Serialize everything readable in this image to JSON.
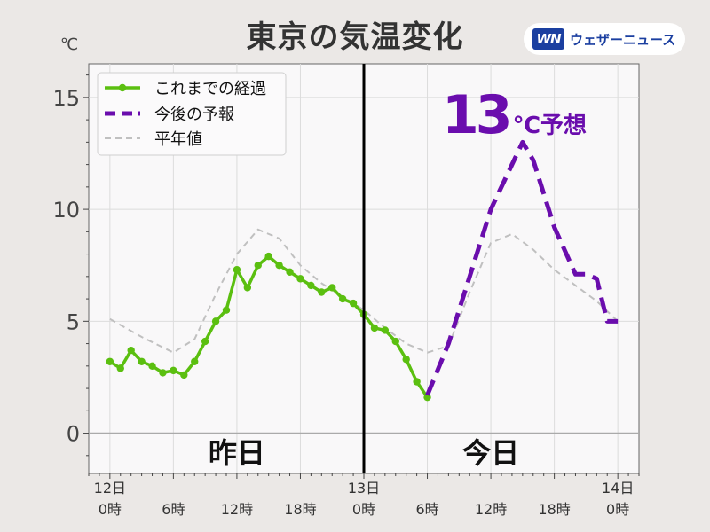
{
  "header": {
    "title": "東京の気温変化",
    "brand_logo": "WN",
    "brand_name": "ウェザーニュース"
  },
  "chart_data": {
    "type": "line",
    "ylabel": "℃",
    "ylim": [
      -1.8,
      16.5
    ],
    "yticks": [
      0,
      5,
      10,
      15
    ],
    "xlim": [
      -2,
      50
    ],
    "x_unit": "hours from 12日0時",
    "xtick_labels": [
      {
        "x": 0,
        "date": "12日",
        "time": "0時"
      },
      {
        "x": 6,
        "date": "",
        "time": "6時"
      },
      {
        "x": 12,
        "date": "",
        "time": "12時"
      },
      {
        "x": 18,
        "date": "",
        "time": "18時"
      },
      {
        "x": 24,
        "date": "13日",
        "time": "0時"
      },
      {
        "x": 30,
        "date": "",
        "time": "6時"
      },
      {
        "x": 36,
        "date": "",
        "time": "12時"
      },
      {
        "x": 42,
        "date": "",
        "time": "18時"
      },
      {
        "x": 48,
        "date": "14日",
        "time": "0時"
      }
    ],
    "divider_x": 24,
    "day_labels": {
      "yesterday": "昨日",
      "today": "今日"
    },
    "annotation": {
      "value": "13",
      "suffix": "℃予想",
      "color": "#6a0dad"
    },
    "legend": {
      "position": "top-left",
      "items": [
        {
          "label": "これまでの経過",
          "series": "observed"
        },
        {
          "label": "今後の予報",
          "series": "forecast"
        },
        {
          "label": "平年値",
          "series": "normal"
        }
      ]
    },
    "series": [
      {
        "id": "observed",
        "name": "これまでの経過",
        "color": "#5bbf10",
        "x": [
          0,
          1,
          2,
          3,
          4,
          5,
          6,
          7,
          8,
          9,
          10,
          11,
          12,
          13,
          14,
          15,
          16,
          17,
          18,
          19,
          20,
          21,
          22,
          23,
          24,
          25,
          26,
          27,
          28,
          29,
          30
        ],
        "y": [
          3.2,
          2.9,
          3.7,
          3.2,
          3.0,
          2.7,
          2.8,
          2.6,
          3.2,
          4.1,
          5.0,
          5.5,
          7.3,
          6.5,
          7.5,
          7.9,
          7.5,
          7.2,
          6.9,
          6.6,
          6.3,
          6.5,
          6.0,
          5.8,
          5.3,
          4.7,
          4.6,
          4.1,
          3.3,
          2.3,
          1.6
        ]
      },
      {
        "id": "forecast",
        "name": "今後の予報",
        "color": "#6a0dad",
        "x": [
          30,
          32,
          34,
          36,
          38,
          39,
          40,
          42,
          44,
          45,
          46,
          47,
          48
        ],
        "y": [
          1.7,
          4.0,
          7.0,
          10.0,
          12.0,
          13.0,
          12.2,
          9.2,
          7.1,
          7.1,
          6.9,
          5.0,
          5.0
        ]
      },
      {
        "id": "normal",
        "name": "平年値",
        "color": "#c0c0c0",
        "x": [
          0,
          3,
          6,
          8,
          10,
          12,
          14,
          16,
          18,
          20,
          22,
          24,
          26,
          28,
          30,
          32,
          34,
          36,
          38,
          40,
          42,
          44,
          46,
          48
        ],
        "y": [
          5.1,
          4.3,
          3.6,
          4.2,
          6.2,
          8.0,
          9.1,
          8.7,
          7.5,
          6.7,
          6.1,
          5.5,
          4.7,
          4.0,
          3.6,
          3.9,
          6.3,
          8.5,
          8.9,
          8.2,
          7.3,
          6.6,
          5.9,
          5.0
        ]
      }
    ]
  }
}
